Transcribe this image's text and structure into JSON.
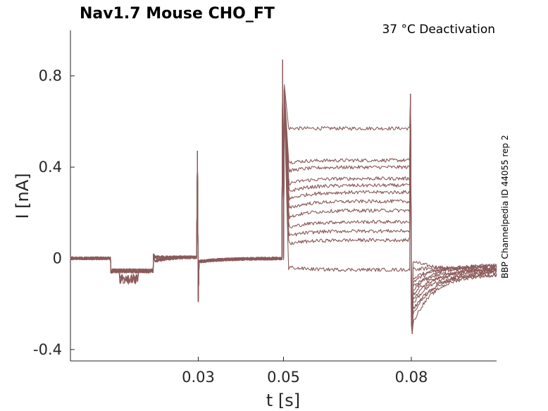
{
  "chart_data": {
    "type": "line",
    "title": "Nav1.7  Mouse  CHO_FT",
    "subtitle": "37 °C  Deactivation",
    "xlabel": "t [s]",
    "ylabel": "I [nA]",
    "side_label": "BBP Channelpedia ID 44055 rep 2",
    "xlim": [
      0.0,
      0.1
    ],
    "ylim": [
      -0.45,
      1.0
    ],
    "xticks": [
      0.03,
      0.05,
      0.08
    ],
    "xtick_labels": [
      "0.03",
      "0.05",
      "0.08"
    ],
    "yticks": [
      -0.4,
      0,
      0.4,
      0.8
    ],
    "ytick_labels": [
      "-0.4",
      "0",
      "0.4",
      "0.8"
    ],
    "grid": false,
    "line_color": "#8b5a5a",
    "sweep_count": 12,
    "protocol_times": {
      "step1_start": 0.0095,
      "step1_end": 0.0195,
      "capacitive_artifact": 0.03,
      "test_pulse_start": 0.05,
      "test_pulse_end": 0.08
    },
    "peak_current": 0.87,
    "min_current": -0.33,
    "plateau_levels": [
      0.57,
      0.43,
      0.4,
      0.35,
      0.32,
      0.29,
      0.25,
      0.21,
      0.16,
      0.12,
      0.08,
      -0.05
    ],
    "tail_levels": [
      -0.05,
      -0.04,
      -0.04,
      -0.03,
      -0.05,
      -0.03,
      -0.05,
      -0.05,
      -0.06,
      -0.07,
      -0.06,
      -0.07
    ],
    "tail_initial": [
      -0.01,
      -0.05,
      -0.09,
      -0.11,
      -0.13,
      -0.15,
      -0.17,
      -0.19,
      -0.21,
      -0.24,
      -0.26,
      -0.3
    ]
  }
}
